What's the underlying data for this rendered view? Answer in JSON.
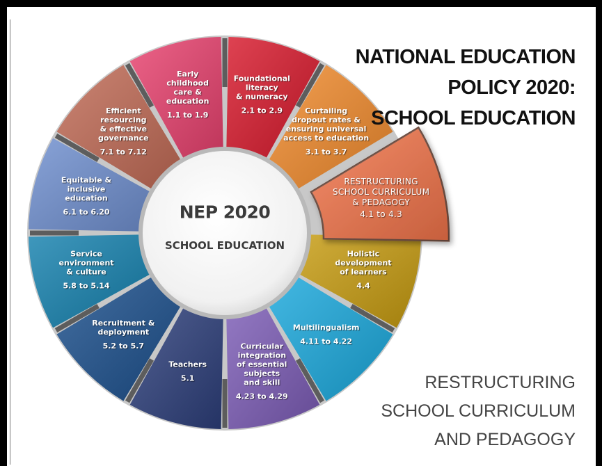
{
  "title_lines": [
    "NATIONAL EDUCATION",
    "POLICY 2020:",
    "SCHOOL EDUCATION"
  ],
  "center": {
    "title": "NEP 2020",
    "subtitle": "SCHOOL EDUCATION"
  },
  "caption_lines": [
    "RESTRUCTURING",
    "SCHOOL CURRICULUM",
    "AND PEDAGOGY"
  ],
  "segments": [
    {
      "id": "early-childhood",
      "lines": [
        "Early",
        "childhood",
        "care &",
        "education"
      ],
      "range": "1.1 to 1.9",
      "color": "#e8416e"
    },
    {
      "id": "foundational-literacy",
      "lines": [
        "Foundational",
        "literacy",
        "& numeracy"
      ],
      "range": "2.1 to 2.9",
      "color": "#d7192c"
    },
    {
      "id": "dropout-rates",
      "lines": [
        "Curtailing",
        "dropout rates &",
        "ensuring universal",
        "access to education"
      ],
      "range": "3.1 to 3.7",
      "color": "#f08a2c"
    },
    {
      "id": "restructuring-curriculum",
      "lines": [
        "RESTRUCTURING",
        "SCHOOL CURRICULUM",
        "& PEDAGOGY"
      ],
      "range": "4.1 to 4.3",
      "color": "#f2744a",
      "highlighted": true
    },
    {
      "id": "holistic-development",
      "lines": [
        "Holistic",
        "development",
        "of learners"
      ],
      "range": "4.4",
      "color": "#c69b10"
    },
    {
      "id": "multilingualism",
      "lines": [
        "Multilingualism"
      ],
      "range": "4.11 to 4.22",
      "color": "#1aa8dc"
    },
    {
      "id": "curricular-integration",
      "lines": [
        "Curricular",
        "integration",
        "of essential",
        "subjects",
        "and skill"
      ],
      "range": "4.23 to 4.29",
      "color": "#7b5bb5"
    },
    {
      "id": "teachers",
      "lines": [
        "Teachers"
      ],
      "range": "5.1",
      "color": "#2c3e7a"
    },
    {
      "id": "recruitment-deployment",
      "lines": [
        "Recruitment &",
        "deployment"
      ],
      "range": "5.2 to 5.7",
      "color": "#1b4f8c"
    },
    {
      "id": "service-environment",
      "lines": [
        "Service",
        "environment",
        "& culture"
      ],
      "range": "5.8 to 5.14",
      "color": "#1581ae"
    },
    {
      "id": "equitable-inclusive",
      "lines": [
        "Equitable &",
        "inclusive",
        "education"
      ],
      "range": "6.1 to 6.20",
      "color": "#6f8fcf"
    },
    {
      "id": "efficient-resourcing",
      "lines": [
        "Efficient",
        "resourcing",
        "& effective",
        "governance"
      ],
      "range": "7.1 to 7.12",
      "color": "#c06a55"
    }
  ]
}
